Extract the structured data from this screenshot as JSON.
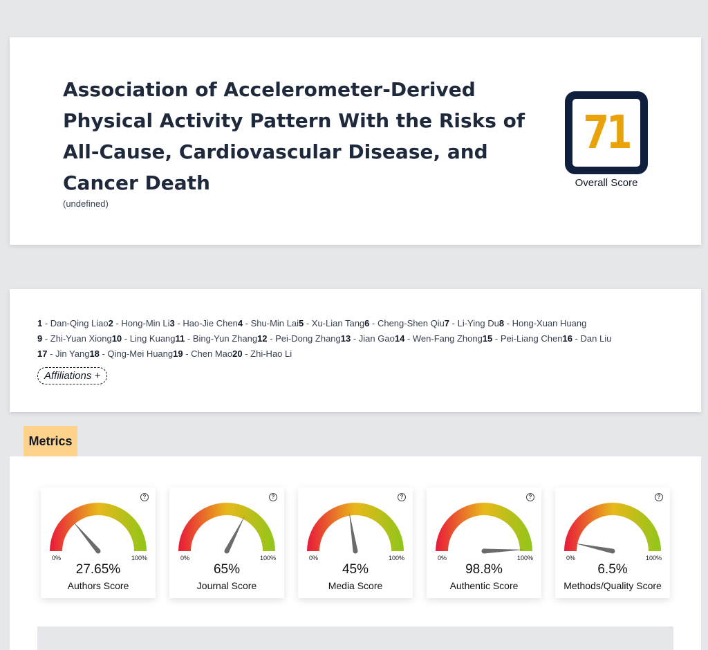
{
  "article": {
    "title": "Association of Accelerometer-Derived Physical Activity Pattern With the Risks of All-Cause, Cardiovascular Disease, and Cancer Death",
    "subnote": "(undefined)",
    "overall_score": "71",
    "overall_label": "Overall Score",
    "score_color": "#eaa20a",
    "score_frame_color": "#0f1f3d"
  },
  "authors": [
    {
      "num": "1",
      "name": "Dan-Qing Liao"
    },
    {
      "num": "2",
      "name": "Hong-Min Li"
    },
    {
      "num": "3",
      "name": "Hao-Jie Chen"
    },
    {
      "num": "4",
      "name": "Shu-Min Lai"
    },
    {
      "num": "5",
      "name": "Xu-Lian Tang"
    },
    {
      "num": "6",
      "name": "Cheng-Shen Qiu"
    },
    {
      "num": "7",
      "name": "Li-Ying Du"
    },
    {
      "num": "8",
      "name": "Hong-Xuan Huang"
    },
    {
      "num": "9",
      "name": "Zhi-Yuan Xiong"
    },
    {
      "num": "10",
      "name": "Ling Kuang"
    },
    {
      "num": "11",
      "name": "Bing-Yun Zhang"
    },
    {
      "num": "12",
      "name": "Pei-Dong Zhang"
    },
    {
      "num": "13",
      "name": "Jian Gao"
    },
    {
      "num": "14",
      "name": "Wen-Fang Zhong"
    },
    {
      "num": "15",
      "name": "Pei-Liang Chen"
    },
    {
      "num": "16",
      "name": "Dan Liu"
    },
    {
      "num": "17",
      "name": "Jin Yang"
    },
    {
      "num": "18",
      "name": "Qing-Mei Huang"
    },
    {
      "num": "19",
      "name": "Chen Mao"
    },
    {
      "num": "20",
      "name": "Zhi-Hao Li"
    }
  ],
  "affiliations_button": "Affiliations +",
  "metrics_tab": "Metrics",
  "gauge_labels": {
    "min": "0%",
    "max": "100%",
    "help": "?"
  },
  "metrics": [
    {
      "value": 0.2765,
      "display": "27.65%",
      "label": "Authors Score"
    },
    {
      "value": 0.65,
      "display": "65%",
      "label": "Journal Score"
    },
    {
      "value": 0.45,
      "display": "45%",
      "label": "Media Score"
    },
    {
      "value": 0.988,
      "display": "98.8%",
      "label": "Authentic Score"
    },
    {
      "value": 0.065,
      "display": "6.5%",
      "label": "Methods/Quality Score"
    }
  ],
  "gauge_colors": {
    "low": "#e8183a",
    "mid": "#e8b81a",
    "high": "#8fc61a",
    "needle": "#6b6b6b"
  }
}
